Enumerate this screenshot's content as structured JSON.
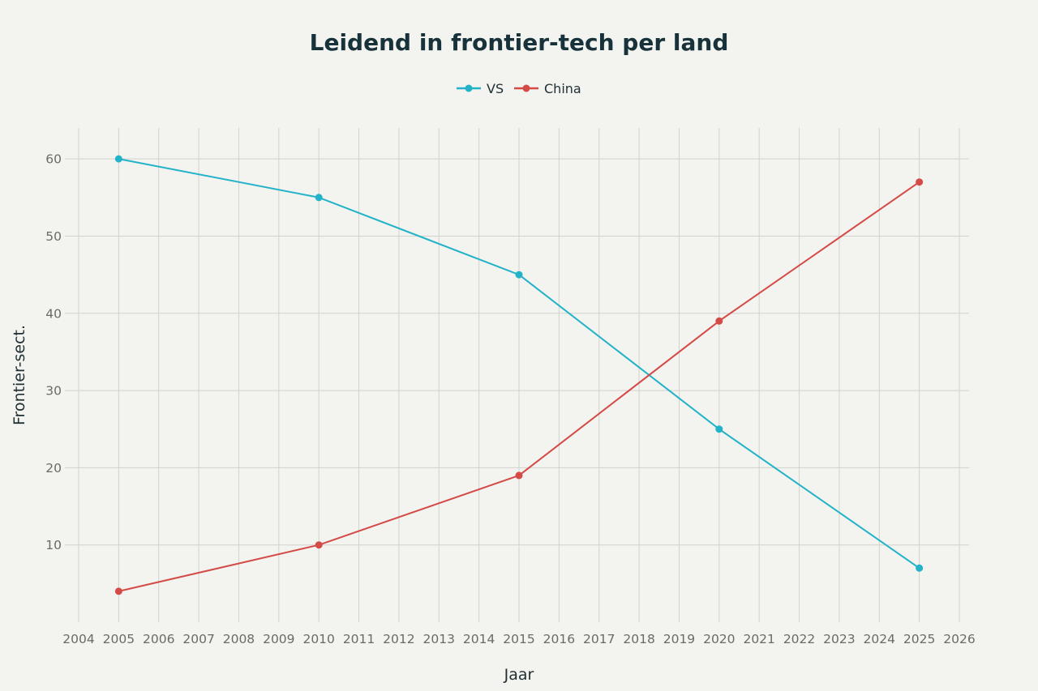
{
  "chart_data": {
    "type": "line",
    "title": "Leidend in frontier-tech per land",
    "xlabel": "Jaar",
    "ylabel": "Frontier-sect.",
    "xlim": [
      2004,
      2026
    ],
    "ylim": [
      0,
      64
    ],
    "xticks": [
      "2004",
      "2005",
      "2006",
      "2007",
      "2008",
      "2009",
      "2010",
      "2011",
      "2012",
      "2013",
      "2014",
      "2015",
      "2016",
      "2017",
      "2018",
      "2019",
      "2020",
      "2021",
      "2022",
      "2023",
      "2024",
      "2025",
      "2026"
    ],
    "yticks": [
      "10",
      "20",
      "30",
      "40",
      "50",
      "60"
    ],
    "grid": true,
    "legend_position": "top-center",
    "series": [
      {
        "name": "VS",
        "color": "#22b3c9",
        "x": [
          2005,
          2010,
          2015,
          2020,
          2025
        ],
        "values": [
          60,
          55,
          45,
          25,
          7
        ]
      },
      {
        "name": "China",
        "color": "#d44a47",
        "x": [
          2005,
          2010,
          2015,
          2020,
          2025
        ],
        "values": [
          4,
          10,
          19,
          39,
          57
        ]
      }
    ]
  }
}
